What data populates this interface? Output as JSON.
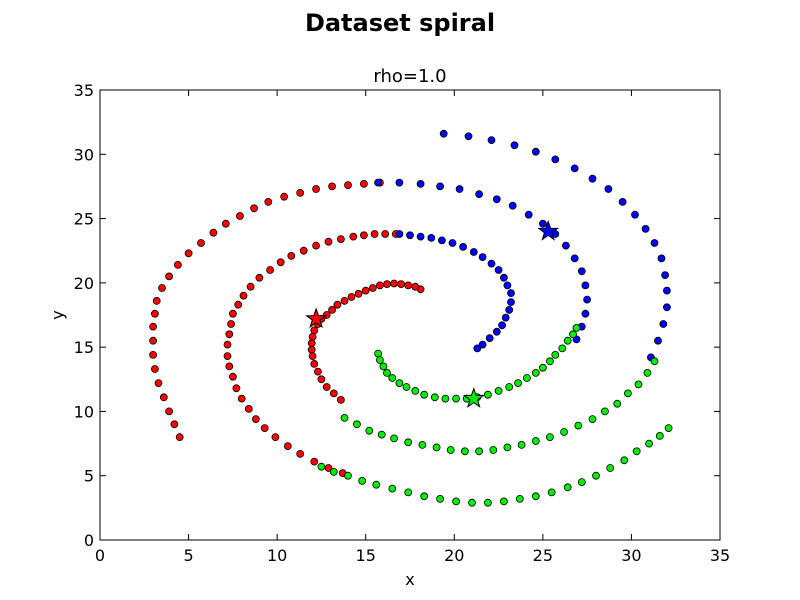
{
  "chart_data": {
    "type": "scatter",
    "suptitle": "Dataset spiral",
    "title": "rho=1.0",
    "xlabel": "x",
    "ylabel": "y",
    "xlim": [
      0,
      35
    ],
    "ylim": [
      0,
      35
    ],
    "xticks": [
      0,
      5,
      10,
      15,
      20,
      25,
      30,
      35
    ],
    "yticks": [
      0,
      5,
      10,
      15,
      20,
      25,
      30,
      35
    ],
    "grid": false,
    "series": [
      {
        "color": "#ff0000",
        "points": [
          [
            18.1,
            19.5
          ],
          [
            17.8,
            19.7
          ],
          [
            17.4,
            19.8
          ],
          [
            17.0,
            19.9
          ],
          [
            16.6,
            19.95
          ],
          [
            16.2,
            19.9
          ],
          [
            15.8,
            19.8
          ],
          [
            15.4,
            19.6
          ],
          [
            15.0,
            19.4
          ],
          [
            14.6,
            19.15
          ],
          [
            14.2,
            18.9
          ],
          [
            13.8,
            18.6
          ],
          [
            13.4,
            18.3
          ],
          [
            13.1,
            17.9
          ],
          [
            12.8,
            17.5
          ],
          [
            12.5,
            17.2
          ],
          [
            12.3,
            16.8
          ],
          [
            12.1,
            16.3
          ],
          [
            12.0,
            15.8
          ],
          [
            11.95,
            15.3
          ],
          [
            11.95,
            14.8
          ],
          [
            12.0,
            14.3
          ],
          [
            12.1,
            13.7
          ],
          [
            12.3,
            13.1
          ],
          [
            12.5,
            12.5
          ],
          [
            12.8,
            11.9
          ],
          [
            13.2,
            11.4
          ],
          [
            13.6,
            10.9
          ],
          [
            16.7,
            23.8
          ],
          [
            16.1,
            23.8
          ],
          [
            15.5,
            23.8
          ],
          [
            14.9,
            23.7
          ],
          [
            14.3,
            23.6
          ],
          [
            13.6,
            23.4
          ],
          [
            12.9,
            23.2
          ],
          [
            12.2,
            22.9
          ],
          [
            11.5,
            22.5
          ],
          [
            10.8,
            22.1
          ],
          [
            10.2,
            21.6
          ],
          [
            9.6,
            21.0
          ],
          [
            9.0,
            20.4
          ],
          [
            8.5,
            19.7
          ],
          [
            8.1,
            19.0
          ],
          [
            7.8,
            18.3
          ],
          [
            7.5,
            17.6
          ],
          [
            7.4,
            16.8
          ],
          [
            7.3,
            16.0
          ],
          [
            7.2,
            15.2
          ],
          [
            7.2,
            14.3
          ],
          [
            7.3,
            13.5
          ],
          [
            7.5,
            12.7
          ],
          [
            7.7,
            11.8
          ],
          [
            8.0,
            11.0
          ],
          [
            8.4,
            10.2
          ],
          [
            8.8,
            9.4
          ],
          [
            9.3,
            8.7
          ],
          [
            9.9,
            8.0
          ],
          [
            10.6,
            7.3
          ],
          [
            11.3,
            6.7
          ],
          [
            12.1,
            6.1
          ],
          [
            12.9,
            5.6
          ],
          [
            13.7,
            5.2
          ],
          [
            15.8,
            27.8
          ],
          [
            14.9,
            27.7
          ],
          [
            14.0,
            27.6
          ],
          [
            13.1,
            27.5
          ],
          [
            12.2,
            27.3
          ],
          [
            11.3,
            27.0
          ],
          [
            10.4,
            26.7
          ],
          [
            9.5,
            26.3
          ],
          [
            8.7,
            25.8
          ],
          [
            7.9,
            25.2
          ],
          [
            7.1,
            24.6
          ],
          [
            6.4,
            23.9
          ],
          [
            5.7,
            23.1
          ],
          [
            5.0,
            22.3
          ],
          [
            4.4,
            21.4
          ],
          [
            3.9,
            20.5
          ],
          [
            3.5,
            19.6
          ],
          [
            3.2,
            18.6
          ],
          [
            3.1,
            17.6
          ],
          [
            3.0,
            16.6
          ],
          [
            3.0,
            15.5
          ],
          [
            3.0,
            14.4
          ],
          [
            3.1,
            13.3
          ],
          [
            3.3,
            12.2
          ],
          [
            3.6,
            11.1
          ],
          [
            3.9,
            10.0
          ],
          [
            4.2,
            9.0
          ],
          [
            4.5,
            8.0
          ]
        ]
      },
      {
        "color": "#0000ff",
        "points": [
          [
            19.4,
            31.6
          ],
          [
            20.8,
            31.4
          ],
          [
            22.1,
            31.1
          ],
          [
            23.4,
            30.7
          ],
          [
            24.6,
            30.2
          ],
          [
            25.7,
            29.6
          ],
          [
            26.8,
            28.9
          ],
          [
            27.8,
            28.1
          ],
          [
            28.7,
            27.3
          ],
          [
            29.5,
            26.3
          ],
          [
            30.2,
            25.3
          ],
          [
            30.8,
            24.2
          ],
          [
            31.3,
            23.1
          ],
          [
            31.7,
            21.9
          ],
          [
            31.9,
            20.6
          ],
          [
            32.0,
            19.4
          ],
          [
            32.0,
            18.1
          ],
          [
            31.8,
            16.8
          ],
          [
            31.5,
            15.5
          ],
          [
            31.1,
            14.2
          ],
          [
            16.9,
            23.8
          ],
          [
            17.5,
            23.7
          ],
          [
            18.1,
            23.6
          ],
          [
            18.7,
            23.5
          ],
          [
            19.3,
            23.3
          ],
          [
            19.9,
            23.1
          ],
          [
            20.5,
            22.8
          ],
          [
            21.1,
            22.4
          ],
          [
            21.6,
            22.0
          ],
          [
            22.1,
            21.5
          ],
          [
            22.5,
            21.0
          ],
          [
            22.8,
            20.4
          ],
          [
            23.0,
            19.8
          ],
          [
            23.2,
            19.2
          ],
          [
            23.2,
            18.5
          ],
          [
            23.1,
            17.9
          ],
          [
            22.9,
            17.3
          ],
          [
            22.7,
            16.7
          ],
          [
            22.4,
            16.2
          ],
          [
            22.0,
            15.7
          ],
          [
            21.6,
            15.2
          ],
          [
            21.3,
            14.9
          ],
          [
            15.7,
            27.8
          ],
          [
            16.9,
            27.8
          ],
          [
            18.1,
            27.7
          ],
          [
            19.2,
            27.5
          ],
          [
            20.3,
            27.3
          ],
          [
            21.4,
            26.9
          ],
          [
            22.4,
            26.5
          ],
          [
            23.3,
            26.0
          ],
          [
            24.2,
            25.3
          ],
          [
            25.0,
            24.6
          ],
          [
            25.7,
            23.8
          ],
          [
            26.3,
            22.9
          ],
          [
            26.8,
            21.9
          ],
          [
            27.2,
            20.9
          ],
          [
            27.4,
            19.8
          ],
          [
            27.5,
            18.7
          ],
          [
            27.4,
            17.6
          ],
          [
            27.2,
            16.6
          ],
          [
            26.9,
            15.6
          ]
        ]
      },
      {
        "color": "#00ee00",
        "points": [
          [
            15.7,
            14.5
          ],
          [
            15.8,
            14.0
          ],
          [
            16.0,
            13.5
          ],
          [
            16.2,
            13.0
          ],
          [
            16.5,
            12.6
          ],
          [
            16.9,
            12.2
          ],
          [
            17.3,
            11.9
          ],
          [
            17.8,
            11.6
          ],
          [
            18.3,
            11.3
          ],
          [
            18.9,
            11.1
          ],
          [
            19.5,
            11.0
          ],
          [
            20.1,
            11.0
          ],
          [
            20.7,
            11.0
          ],
          [
            21.3,
            11.1
          ],
          [
            21.9,
            11.3
          ],
          [
            22.5,
            11.6
          ],
          [
            23.1,
            11.9
          ],
          [
            23.6,
            12.2
          ],
          [
            24.1,
            12.6
          ],
          [
            24.6,
            13.0
          ],
          [
            25.0,
            13.4
          ],
          [
            25.4,
            13.9
          ],
          [
            25.7,
            14.4
          ],
          [
            26.1,
            14.9
          ],
          [
            26.4,
            15.5
          ],
          [
            26.7,
            16.0
          ],
          [
            26.9,
            16.5
          ],
          [
            13.8,
            9.5
          ],
          [
            14.5,
            9.0
          ],
          [
            15.2,
            8.5
          ],
          [
            15.9,
            8.2
          ],
          [
            16.6,
            7.9
          ],
          [
            17.4,
            7.6
          ],
          [
            18.2,
            7.4
          ],
          [
            19.0,
            7.2
          ],
          [
            19.8,
            7.0
          ],
          [
            20.6,
            6.9
          ],
          [
            21.4,
            6.9
          ],
          [
            22.2,
            7.0
          ],
          [
            23.0,
            7.2
          ],
          [
            23.8,
            7.4
          ],
          [
            24.6,
            7.7
          ],
          [
            25.4,
            8.0
          ],
          [
            26.2,
            8.4
          ],
          [
            27.0,
            8.9
          ],
          [
            27.8,
            9.4
          ],
          [
            28.5,
            10.0
          ],
          [
            29.2,
            10.6
          ],
          [
            29.8,
            11.4
          ],
          [
            30.4,
            12.1
          ],
          [
            30.9,
            13.0
          ],
          [
            31.3,
            13.9
          ],
          [
            12.5,
            5.7
          ],
          [
            13.2,
            5.3
          ],
          [
            14.0,
            5.0
          ],
          [
            14.8,
            4.6
          ],
          [
            15.6,
            4.3
          ],
          [
            16.5,
            4.0
          ],
          [
            17.4,
            3.7
          ],
          [
            18.3,
            3.4
          ],
          [
            19.2,
            3.2
          ],
          [
            20.1,
            3.0
          ],
          [
            21.0,
            2.9
          ],
          [
            21.9,
            2.9
          ],
          [
            22.8,
            3.0
          ],
          [
            23.7,
            3.2
          ],
          [
            24.6,
            3.4
          ],
          [
            25.5,
            3.7
          ],
          [
            26.4,
            4.1
          ],
          [
            27.2,
            4.5
          ],
          [
            28.0,
            5.0
          ],
          [
            28.8,
            5.6
          ],
          [
            29.6,
            6.2
          ],
          [
            30.3,
            6.9
          ],
          [
            31.0,
            7.5
          ],
          [
            31.6,
            8.1
          ],
          [
            32.1,
            8.7
          ]
        ]
      }
    ],
    "centroids": [
      {
        "color": "#ff0000",
        "x": 12.2,
        "y": 17.2
      },
      {
        "color": "#0000ff",
        "x": 25.3,
        "y": 24.0
      },
      {
        "color": "#00ee00",
        "x": 21.1,
        "y": 11.0
      }
    ]
  }
}
